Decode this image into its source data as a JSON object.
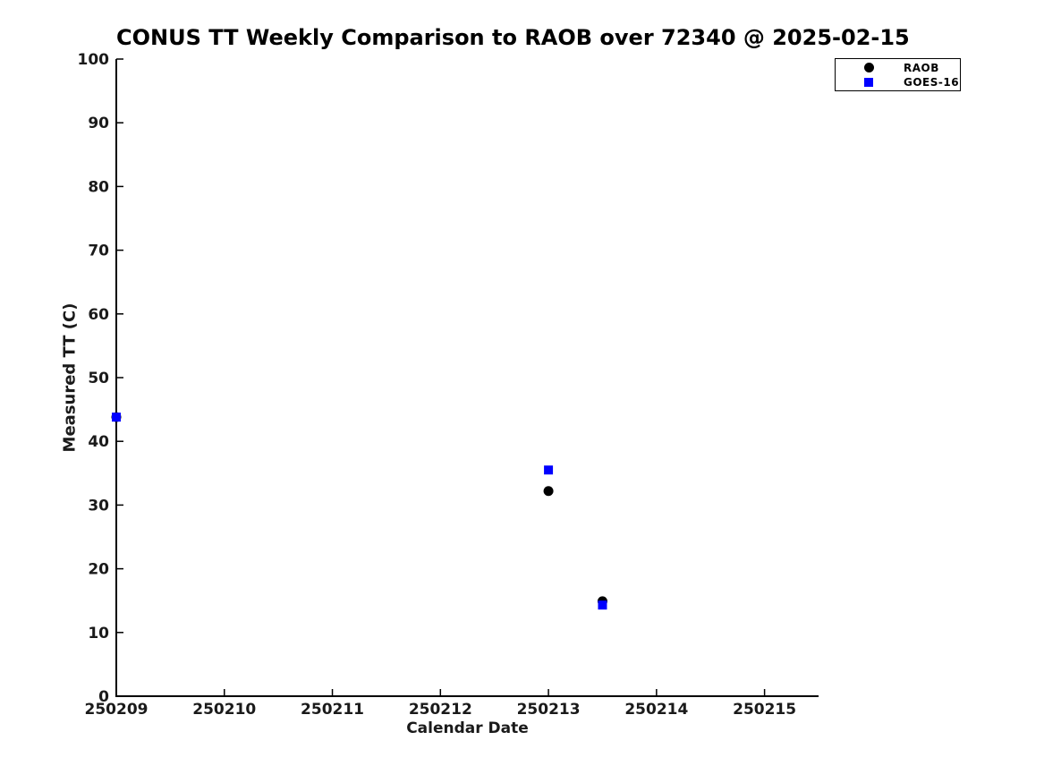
{
  "chart_data": {
    "type": "scatter",
    "title": "CONUS TT Weekly Comparison to RAOB over 72340 @ 2025-02-15",
    "xlabel": "Calendar Date",
    "ylabel": "Measured TT (C)",
    "x_tick_labels": [
      "250209",
      "250210",
      "250211",
      "250212",
      "250213",
      "250214",
      "250215"
    ],
    "y_ticks": [
      0,
      10,
      20,
      30,
      40,
      50,
      60,
      70,
      80,
      90,
      100
    ],
    "xlim_days": [
      0,
      6.5
    ],
    "ylim": [
      0,
      100
    ],
    "grid": false,
    "background_color": "#ffffff",
    "axis_color": "#000000",
    "legend_position": "upper right",
    "series": [
      {
        "name": "RAOB",
        "marker": "circle",
        "color": "#000000",
        "points": [
          {
            "x_days_since_250209": 0,
            "y": 43.8
          },
          {
            "x_days_since_250209": 4,
            "y": 32.2
          },
          {
            "x_days_since_250209": 4.5,
            "y": 14.9
          }
        ]
      },
      {
        "name": "GOES-16",
        "marker": "square",
        "color": "#0000ff",
        "points": [
          {
            "x_days_since_250209": 0,
            "y": 43.8
          },
          {
            "x_days_since_250209": 4,
            "y": 35.5
          },
          {
            "x_days_since_250209": 4.5,
            "y": 14.3
          }
        ]
      }
    ]
  }
}
